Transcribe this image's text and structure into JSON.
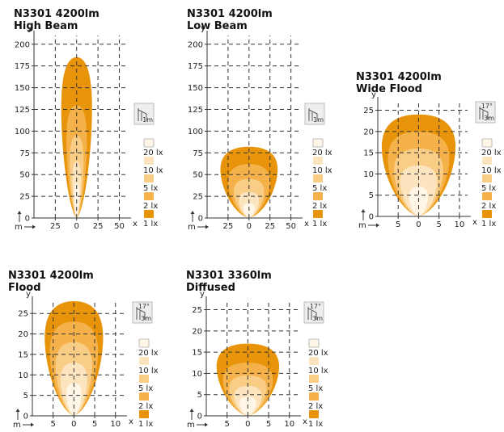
{
  "colors": {
    "zone_1lx": "#E8940A",
    "zone_2lx": "#F5B24A",
    "zone_5lx": "#F9CD86",
    "zone_10lx": "#FCE4BE",
    "zone_20lx": "#FFF6E8",
    "grid": "#333333",
    "icon_bg": "#eeeeee"
  },
  "legend_levels": [
    "20 lx",
    "10 lx",
    "5 lx",
    "2 lx",
    "1 lx"
  ],
  "axis_unit_x": "x",
  "axis_unit_y": "y",
  "axis_unit_m": "m",
  "chart_data": [
    {
      "type": "isolux",
      "title_line1": "N3301 4200lm",
      "title_line2": "High Beam",
      "x_ticks": [
        "25",
        "0",
        "25",
        "50"
      ],
      "x_tick_values": [
        -25,
        0,
        25,
        50
      ],
      "xlim": [
        -50,
        60
      ],
      "y_ticks": [
        "0",
        "25",
        "50",
        "75",
        "100",
        "125",
        "150",
        "175",
        "200"
      ],
      "y_tick_values": [
        0,
        25,
        50,
        75,
        100,
        125,
        150,
        175,
        200
      ],
      "ylim": [
        0,
        210
      ],
      "icon_label": "1m",
      "icon_angle": "",
      "zones": [
        {
          "level": "1 lx",
          "reach": 185,
          "halfwidth": 18
        },
        {
          "level": "2 lx",
          "reach": 130,
          "halfwidth": 12
        },
        {
          "level": "5 lx",
          "reach": 95,
          "halfwidth": 8
        },
        {
          "level": "10 lx",
          "reach": 65,
          "halfwidth": 5
        },
        {
          "level": "20 lx",
          "reach": 40,
          "halfwidth": 3
        }
      ]
    },
    {
      "type": "isolux",
      "title_line1": "N3301 4200lm",
      "title_line2": "Low Beam",
      "x_ticks": [
        "25",
        "0",
        "25",
        "50"
      ],
      "x_tick_values": [
        -25,
        0,
        25,
        50
      ],
      "xlim": [
        -50,
        60
      ],
      "y_ticks": [
        "0",
        "25",
        "50",
        "75",
        "100",
        "125",
        "150",
        "175",
        "200"
      ],
      "y_tick_values": [
        0,
        25,
        50,
        75,
        100,
        125,
        150,
        175,
        200
      ],
      "ylim": [
        0,
        210
      ],
      "icon_label": "1m",
      "icon_angle": "",
      "zones": [
        {
          "level": "1 lx",
          "reach": 82,
          "halfwidth": 34
        },
        {
          "level": "2 lx",
          "reach": 62,
          "halfwidth": 25
        },
        {
          "level": "5 lx",
          "reach": 45,
          "halfwidth": 18
        },
        {
          "level": "10 lx",
          "reach": 30,
          "halfwidth": 12
        },
        {
          "level": "20 lx",
          "reach": 17,
          "halfwidth": 7
        }
      ]
    },
    {
      "type": "isolux",
      "title_line1": "N3301 4200lm",
      "title_line2": "Wide Flood",
      "x_ticks": [
        "5",
        "0",
        "5",
        "10"
      ],
      "x_tick_values": [
        -5,
        0,
        5,
        10
      ],
      "xlim": [
        -10,
        12
      ],
      "y_ticks": [
        "0",
        "5",
        "10",
        "15",
        "20",
        "25"
      ],
      "y_tick_values": [
        0,
        5,
        10,
        15,
        20,
        25
      ],
      "ylim": [
        0,
        27
      ],
      "icon_label": "3m",
      "icon_angle": "17°",
      "zones": [
        {
          "level": "1 lx",
          "reach": 24,
          "halfwidth": 9
        },
        {
          "level": "2 lx",
          "reach": 20,
          "halfwidth": 7.5
        },
        {
          "level": "5 lx",
          "reach": 16,
          "halfwidth": 6
        },
        {
          "level": "10 lx",
          "reach": 12,
          "halfwidth": 4.5
        },
        {
          "level": "20 lx",
          "reach": 7,
          "halfwidth": 2.3
        }
      ]
    },
    {
      "type": "isolux",
      "title_line1": "N3301 4200lm",
      "title_line2": "Flood",
      "x_ticks": [
        "5",
        "0",
        "5",
        "10"
      ],
      "x_tick_values": [
        -5,
        0,
        5,
        10
      ],
      "xlim": [
        -10,
        12
      ],
      "y_ticks": [
        "0",
        "5",
        "10",
        "15",
        "20",
        "25"
      ],
      "y_tick_values": [
        0,
        5,
        10,
        15,
        20,
        25
      ],
      "ylim": [
        0,
        28
      ],
      "icon_label": "3m",
      "icon_angle": "17°",
      "zones": [
        {
          "level": "1 lx",
          "reach": 28,
          "halfwidth": 7
        },
        {
          "level": "2 lx",
          "reach": 23,
          "halfwidth": 5.8
        },
        {
          "level": "5 lx",
          "reach": 18,
          "halfwidth": 4.4
        },
        {
          "level": "10 lx",
          "reach": 13,
          "halfwidth": 3.2
        },
        {
          "level": "20 lx",
          "reach": 8,
          "halfwidth": 1.8
        }
      ]
    },
    {
      "type": "isolux",
      "title_line1": "N3301 3360lm",
      "title_line2": "Diffused",
      "x_ticks": [
        "5",
        "0",
        "5",
        "10"
      ],
      "x_tick_values": [
        -5,
        0,
        5,
        10
      ],
      "xlim": [
        -10,
        12
      ],
      "y_ticks": [
        "0",
        "5",
        "10",
        "15",
        "20",
        "25"
      ],
      "y_tick_values": [
        0,
        5,
        10,
        15,
        20,
        25
      ],
      "ylim": [
        0,
        27
      ],
      "icon_label": "3m",
      "icon_angle": "17°",
      "zones": [
        {
          "level": "1 lx",
          "reach": 17,
          "halfwidth": 7.5
        },
        {
          "level": "2 lx",
          "reach": 12.5,
          "halfwidth": 6
        },
        {
          "level": "5 lx",
          "reach": 9.5,
          "halfwidth": 4.5
        },
        {
          "level": "10 lx",
          "reach": 7,
          "halfwidth": 3.3
        },
        {
          "level": "20 lx",
          "reach": 4.5,
          "halfwidth": 2
        }
      ]
    }
  ]
}
